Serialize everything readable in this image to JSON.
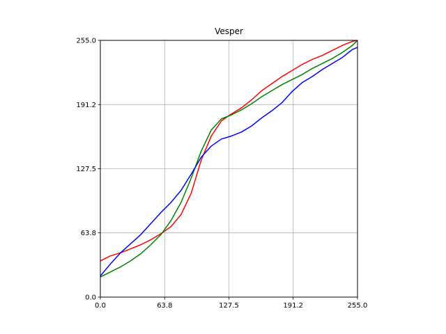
{
  "chart_data": {
    "type": "line",
    "title": "Vesper",
    "xlabel": "",
    "ylabel": "",
    "xlim": [
      0,
      255
    ],
    "ylim": [
      0,
      255
    ],
    "x_ticks": [
      0.0,
      63.8,
      127.5,
      191.2,
      255.0
    ],
    "y_ticks": [
      0.0,
      63.8,
      127.5,
      191.2,
      255.0
    ],
    "x_tick_labels": [
      "0.0",
      "63.8",
      "127.5",
      "191.2",
      "255.0"
    ],
    "y_tick_labels": [
      "0.0",
      "63.8",
      "127.5",
      "191.2",
      "255.0"
    ],
    "grid": true,
    "series": [
      {
        "color": "#ff0000",
        "x": [
          0,
          10,
          20,
          30,
          40,
          50,
          60,
          70,
          80,
          90,
          100,
          110,
          120,
          130,
          140,
          150,
          160,
          170,
          180,
          190,
          200,
          210,
          220,
          230,
          240,
          250,
          255
        ],
        "y": [
          36,
          41,
          44,
          48,
          52,
          57,
          63,
          70,
          82,
          103,
          136,
          160,
          175,
          182,
          188,
          196,
          205,
          212,
          219,
          225,
          231,
          236,
          240,
          245,
          250,
          254,
          255
        ]
      },
      {
        "color": "#008000",
        "x": [
          0,
          10,
          20,
          30,
          40,
          50,
          60,
          70,
          80,
          90,
          100,
          110,
          120,
          130,
          140,
          150,
          160,
          170,
          180,
          190,
          200,
          210,
          220,
          230,
          240,
          250,
          255
        ],
        "y": [
          20,
          25,
          30,
          36,
          43,
          52,
          62,
          76,
          94,
          118,
          145,
          166,
          177,
          181,
          186,
          192,
          199,
          205,
          211,
          216,
          221,
          227,
          232,
          237,
          243,
          250,
          255
        ]
      },
      {
        "color": "#0000ff",
        "x": [
          0,
          10,
          20,
          30,
          40,
          50,
          60,
          70,
          80,
          90,
          100,
          110,
          120,
          130,
          140,
          150,
          160,
          170,
          180,
          190,
          200,
          210,
          220,
          230,
          240,
          250,
          255
        ],
        "y": [
          21,
          33,
          44,
          53,
          62,
          73,
          84,
          94,
          106,
          122,
          139,
          150,
          157,
          160,
          164,
          170,
          178,
          185,
          193,
          204,
          213,
          219,
          226,
          232,
          238,
          246,
          248
        ]
      }
    ]
  }
}
